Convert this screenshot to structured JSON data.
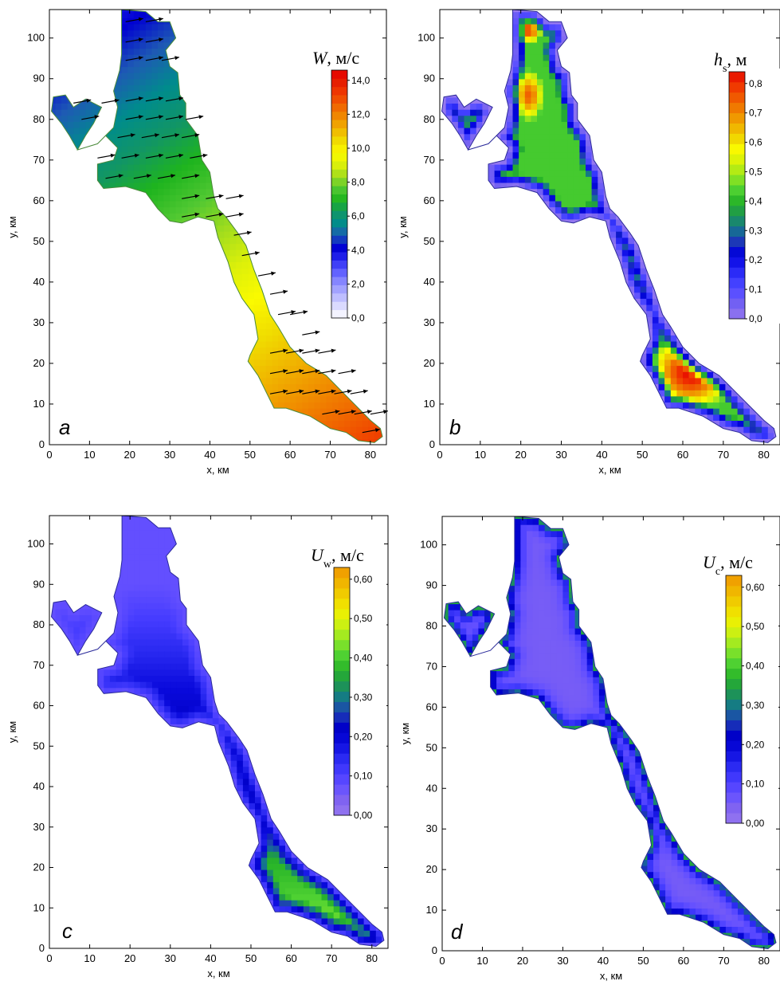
{
  "chart_data": [
    {
      "type": "heatmap",
      "panel": "a",
      "field_symbol": "W",
      "field_subscript": "",
      "unit": ", м/с",
      "xlabel": "x, км",
      "ylabel": "y, км",
      "xlim": [
        0,
        84
      ],
      "ylim": [
        0,
        107
      ],
      "xticks": [
        0,
        10,
        20,
        30,
        40,
        50,
        60,
        70,
        80
      ],
      "yticks": [
        0,
        10,
        20,
        30,
        40,
        50,
        60,
        70,
        80,
        90,
        100
      ],
      "colorbar": {
        "min": 0,
        "max": 14.6,
        "levels": 30,
        "tick_values": [
          0,
          2,
          4,
          6,
          8,
          10,
          12,
          14
        ],
        "tick_labels": [
          "0,0",
          "2,0",
          "4,0",
          "6,0",
          "8,0",
          "10,0",
          "12,0",
          "14,0"
        ],
        "colors": [
          "#ffffff",
          "#dcdcff",
          "#b4b4ff",
          "#8c8cff",
          "#5a5aff",
          "#2828f0",
          "#0000d2",
          "#1e5ab4",
          "#008c8c",
          "#129664",
          "#1eb41e",
          "#50c832",
          "#a0dc1e",
          "#dcf00a",
          "#fafa00",
          "#f0dc00",
          "#f0b400",
          "#f08c00",
          "#f06400",
          "#f03c00",
          "#e61e00",
          "#e60000"
        ]
      },
      "field_model": {
        "base": 3.8,
        "gain": 10.6,
        "along_range": [
          -80,
          60
        ]
      },
      "arrows": true
    },
    {
      "type": "heatmap",
      "panel": "b",
      "field_symbol": "h",
      "field_subscript": "s",
      "unit": ", м",
      "xlabel": "x, км",
      "ylabel": "y, км",
      "xlim": [
        0,
        84
      ],
      "ylim": [
        0,
        107
      ],
      "xticks": [
        0,
        10,
        20,
        30,
        40,
        50,
        60,
        70,
        80
      ],
      "yticks": [
        0,
        10,
        20,
        30,
        40,
        50,
        60,
        70,
        80,
        90,
        100
      ],
      "colorbar": {
        "min": 0,
        "max": 0.84,
        "levels": 24,
        "tick_values": [
          0,
          0.1,
          0.2,
          0.3,
          0.4,
          0.5,
          0.6,
          0.7,
          0.8
        ],
        "tick_labels": [
          "0,0",
          "0,1",
          "0,2",
          "0,3",
          "0,4",
          "0,5",
          "0,6",
          "0,7",
          "0,8"
        ],
        "colors": [
          "#9678f0",
          "#7864f0",
          "#5a50ff",
          "#3c3cff",
          "#1e1ef0",
          "#0000dc",
          "#1e3cb4",
          "#14788c",
          "#1e9650",
          "#28b428",
          "#50d232",
          "#96e61e",
          "#d2f00a",
          "#fafa00",
          "#f0d200",
          "#f0aa00",
          "#f08200",
          "#f05a00",
          "#f03200",
          "#e60a00"
        ]
      },
      "field_model": {
        "mode": "depth",
        "gain": 0.8
      },
      "arrows": false
    },
    {
      "type": "heatmap",
      "panel": "c",
      "field_symbol": "U",
      "field_subscript": "w",
      "unit": ", м/с",
      "xlabel": "x, км",
      "ylabel": "y, км",
      "xlim": [
        0,
        84
      ],
      "ylim": [
        0,
        107
      ],
      "xticks": [
        0,
        10,
        20,
        30,
        40,
        50,
        60,
        70,
        80
      ],
      "yticks": [
        0,
        10,
        20,
        30,
        40,
        50,
        60,
        70,
        80,
        90,
        100
      ],
      "colorbar": {
        "min": 0,
        "max": 0.63,
        "levels": 24,
        "tick_values": [
          0,
          0.1,
          0.2,
          0.3,
          0.4,
          0.5,
          0.6
        ],
        "tick_labels": [
          "0,00",
          "0,10",
          "0,20",
          "0,30",
          "0,40",
          "0,50",
          "0,60"
        ],
        "colors": [
          "#9678f0",
          "#8264f0",
          "#6450ff",
          "#463cff",
          "#2828f0",
          "#0a0adc",
          "#0000c8",
          "#1e3cb4",
          "#14788c",
          "#1e9650",
          "#28b428",
          "#50d232",
          "#8ce628",
          "#c8f014",
          "#f0f000",
          "#f0d200",
          "#f0b400",
          "#f09600"
        ]
      },
      "field_model": {
        "mode": "wave",
        "gain": 0.38
      },
      "arrows": false
    },
    {
      "type": "heatmap",
      "panel": "d",
      "field_symbol": "U",
      "field_subscript": "c",
      "unit": ", м/с",
      "xlabel": "x, км",
      "ylabel": "y, км",
      "xlim": [
        0,
        84
      ],
      "ylim": [
        0,
        107
      ],
      "xticks": [
        0,
        10,
        20,
        30,
        40,
        50,
        60,
        70,
        80
      ],
      "yticks": [
        0,
        10,
        20,
        30,
        40,
        50,
        60,
        70,
        80,
        90,
        100
      ],
      "colorbar": {
        "min": 0,
        "max": 0.63,
        "levels": 24,
        "tick_values": [
          0,
          0.1,
          0.2,
          0.3,
          0.4,
          0.5,
          0.6
        ],
        "tick_labels": [
          "0,00",
          "0,10",
          "0,20",
          "0,30",
          "0,40",
          "0,50",
          "0,60"
        ],
        "colors": [
          "#9678f0",
          "#8264f0",
          "#6450ff",
          "#463cff",
          "#2828f0",
          "#0a0adc",
          "#0000c8",
          "#1e3cb4",
          "#14788c",
          "#1e9650",
          "#28b428",
          "#50d232",
          "#8ce628",
          "#c8f014",
          "#f0f000",
          "#f0d200",
          "#f0b400",
          "#f09600"
        ]
      },
      "field_model": {
        "mode": "current",
        "gain": 0.2
      },
      "arrows": false
    }
  ],
  "lake_outline_km": [
    [
      18,
      107
    ],
    [
      24,
      106.5
    ],
    [
      27,
      104
    ],
    [
      30,
      104
    ],
    [
      31.5,
      100
    ],
    [
      29,
      97
    ],
    [
      30,
      93
    ],
    [
      32,
      91.5
    ],
    [
      32.5,
      86
    ],
    [
      34,
      84
    ],
    [
      34,
      80
    ],
    [
      37,
      76
    ],
    [
      38,
      70
    ],
    [
      40,
      67
    ],
    [
      41,
      61
    ],
    [
      42,
      58
    ],
    [
      44,
      56
    ],
    [
      47,
      52
    ],
    [
      49,
      49
    ],
    [
      51,
      43
    ],
    [
      53,
      38
    ],
    [
      55,
      32
    ],
    [
      57,
      29
    ],
    [
      60,
      24
    ],
    [
      64,
      20
    ],
    [
      69,
      17
    ],
    [
      73,
      13
    ],
    [
      77,
      9
    ],
    [
      80,
      6
    ],
    [
      82.5,
      4
    ],
    [
      83,
      2
    ],
    [
      81,
      0.5
    ],
    [
      77,
      1
    ],
    [
      74,
      3
    ],
    [
      70,
      4
    ],
    [
      65,
      7
    ],
    [
      59,
      9
    ],
    [
      56,
      9
    ],
    [
      54,
      13
    ],
    [
      52,
      17
    ],
    [
      49.5,
      20.5
    ],
    [
      50,
      22
    ],
    [
      52,
      26
    ],
    [
      51,
      32
    ],
    [
      48,
      36
    ],
    [
      46,
      40
    ],
    [
      44.5,
      45
    ],
    [
      42,
      51
    ],
    [
      41,
      55
    ],
    [
      37,
      56
    ],
    [
      33,
      54.5
    ],
    [
      30,
      55
    ],
    [
      27,
      58
    ],
    [
      24,
      62
    ],
    [
      19,
      63.5
    ],
    [
      13.5,
      63
    ],
    [
      12,
      65
    ],
    [
      12,
      69
    ],
    [
      16,
      70
    ],
    [
      17,
      73
    ],
    [
      14,
      76
    ],
    [
      12,
      74
    ],
    [
      7,
      72.5
    ],
    [
      9,
      76
    ],
    [
      11,
      79
    ],
    [
      13,
      83
    ],
    [
      9,
      85
    ],
    [
      6,
      83
    ],
    [
      4,
      86
    ],
    [
      1,
      85.5
    ],
    [
      0.5,
      82
    ],
    [
      3,
      79
    ],
    [
      5,
      76
    ],
    [
      7,
      72.5
    ],
    [
      12,
      74
    ],
    [
      16,
      78
    ],
    [
      17,
      83
    ],
    [
      16,
      87
    ],
    [
      17.5,
      92
    ],
    [
      18,
      96
    ],
    [
      18,
      101
    ]
  ],
  "wind_arrows_km": [
    [
      19,
      104
    ],
    [
      24,
      104
    ],
    [
      19,
      99
    ],
    [
      24,
      99
    ],
    [
      19,
      94.5
    ],
    [
      24,
      94.5
    ],
    [
      28,
      94.5
    ],
    [
      6,
      84
    ],
    [
      13,
      84
    ],
    [
      19,
      84.5
    ],
    [
      24,
      84.5
    ],
    [
      29,
      84.5
    ],
    [
      8,
      80
    ],
    [
      19,
      80
    ],
    [
      24,
      80
    ],
    [
      29,
      80
    ],
    [
      34,
      80
    ],
    [
      17,
      75.5
    ],
    [
      23,
      75.5
    ],
    [
      28,
      75.5
    ],
    [
      33,
      75.5
    ],
    [
      12,
      70.5
    ],
    [
      18,
      70.5
    ],
    [
      24,
      70.5
    ],
    [
      29,
      70.5
    ],
    [
      35,
      70.5
    ],
    [
      14,
      65.5
    ],
    [
      21,
      65.5
    ],
    [
      27,
      65.5
    ],
    [
      33,
      65.5
    ],
    [
      33,
      60.5
    ],
    [
      39,
      60.5
    ],
    [
      44,
      60.5
    ],
    [
      33,
      56
    ],
    [
      39,
      56
    ],
    [
      44,
      56
    ],
    [
      46,
      51.5
    ],
    [
      48,
      46.5
    ],
    [
      52,
      41.5
    ],
    [
      55,
      37
    ],
    [
      57,
      32
    ],
    [
      60,
      32
    ],
    [
      63,
      27
    ],
    [
      55,
      22.5
    ],
    [
      59,
      22.5
    ],
    [
      63,
      22.5
    ],
    [
      67,
      22.5
    ],
    [
      55,
      17.5
    ],
    [
      59,
      17.5
    ],
    [
      63,
      17.5
    ],
    [
      67,
      17.5
    ],
    [
      72,
      17.5
    ],
    [
      55,
      12.5
    ],
    [
      59,
      12.5
    ],
    [
      63,
      12.5
    ],
    [
      67,
      12.5
    ],
    [
      71,
      12.5
    ],
    [
      75,
      12.5
    ],
    [
      68,
      7.5
    ],
    [
      72,
      7.5
    ],
    [
      76,
      7.5
    ],
    [
      80,
      7.5
    ],
    [
      78,
      3
    ]
  ]
}
